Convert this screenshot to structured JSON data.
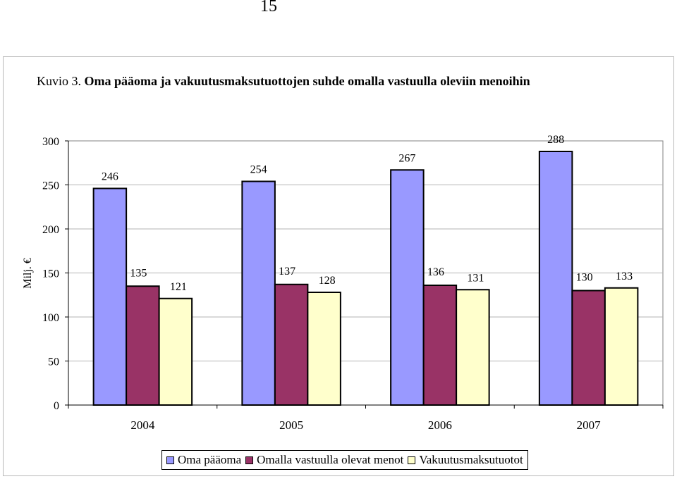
{
  "page_number": "15",
  "title": {
    "label": "Kuvio 3.",
    "text": "Oma pääoma ja vakuutusmaksutuottojen suhde omalla vastuulla oleviin menoihin"
  },
  "chart_data": {
    "type": "bar",
    "categories": [
      "2004",
      "2005",
      "2006",
      "2007"
    ],
    "series": [
      {
        "name": "Oma pääoma",
        "values": [
          246,
          254,
          267,
          288
        ],
        "color": "#9999FF"
      },
      {
        "name": "Omalla vastuulla olevat menot",
        "values": [
          135,
          137,
          136,
          130
        ],
        "color": "#993366"
      },
      {
        "name": "Vakuutusmaksutuotot",
        "values": [
          121,
          128,
          131,
          133
        ],
        "color": "#FFFFCC"
      }
    ],
    "ylabel": "Milj. €",
    "xlabel": "",
    "ylim": [
      0,
      300
    ],
    "yticks": [
      0,
      50,
      100,
      150,
      200,
      250,
      300
    ],
    "grid": true,
    "legend": "bottom"
  }
}
